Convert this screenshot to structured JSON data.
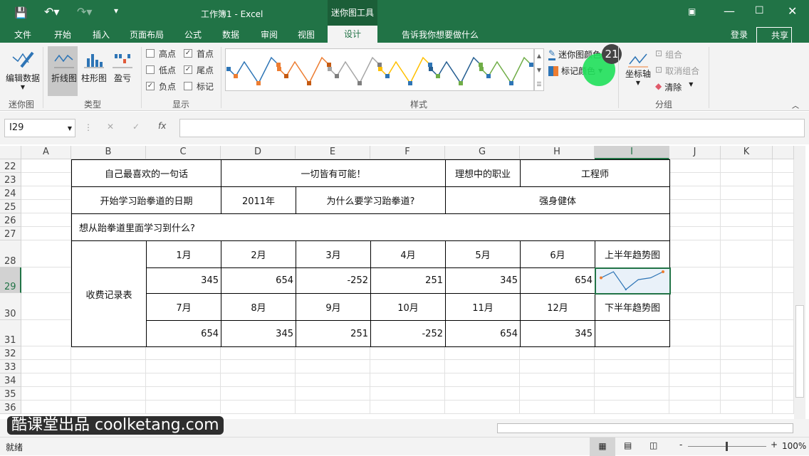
{
  "titlebar": {
    "title": "工作簿1 - Excel",
    "context_tab": "迷你图工具",
    "save_icon": "save-icon",
    "undo_icon": "undo-icon",
    "redo_icon": "redo-icon"
  },
  "tabs": [
    "文件",
    "开始",
    "插入",
    "页面布局",
    "公式",
    "数据",
    "审阅",
    "视图",
    "设计"
  ],
  "active_tab": "设计",
  "tell_me": "告诉我你想要做什么",
  "login": "登录",
  "share": "共享",
  "ribbon": {
    "sparkline_group": {
      "label": "迷你图",
      "edit_data": "编辑数据"
    },
    "type_group": {
      "label": "类型",
      "items": [
        "折线图",
        "柱形图",
        "盈亏"
      ],
      "active": "折线图"
    },
    "show_group": {
      "label": "显示",
      "items": [
        {
          "label": "高点",
          "checked": false
        },
        {
          "label": "首点",
          "checked": true
        },
        {
          "label": "低点",
          "checked": false
        },
        {
          "label": "尾点",
          "checked": true
        },
        {
          "label": "负点",
          "checked": true
        },
        {
          "label": "标记",
          "checked": false
        }
      ]
    },
    "style_group": {
      "label": "样式",
      "colors": [
        [
          "#2e75b6",
          "#ed7d31"
        ],
        [
          "#ed7d31",
          "#c55a11"
        ],
        [
          "#a5a5a5",
          "#7f7f7f"
        ],
        [
          "#ffc000",
          "#2e75b6"
        ],
        [
          "#255e91",
          "#70ad47"
        ],
        [
          "#70ad47",
          "#2e75b6"
        ]
      ]
    },
    "sparkline_color": "迷你图颜色",
    "marker_color": "标记颜色",
    "axis": "坐标轴",
    "group_group": {
      "label": "分组",
      "group": "组合",
      "ungroup": "取消组合",
      "clear": "清除"
    }
  },
  "overlay_badge": "21",
  "formula_bar": {
    "name_box": "I29",
    "value": ""
  },
  "columns": [
    "A",
    "B",
    "C",
    "D",
    "E",
    "F",
    "G",
    "H",
    "I",
    "J",
    "K"
  ],
  "rows": [
    "22",
    "23",
    "24",
    "25",
    "26",
    "27",
    "28",
    "29",
    "30",
    "31",
    "32",
    "33",
    "34",
    "35",
    "36"
  ],
  "active_cell": "I29",
  "cells": [
    {
      "ref": "B22:C23",
      "text": "自己最喜欢的一句话",
      "align": "center"
    },
    {
      "ref": "D22:F23",
      "text": "一切皆有可能！",
      "align": "center"
    },
    {
      "ref": "G22:G23",
      "text": "理想中的职业",
      "align": "center"
    },
    {
      "ref": "H22:I23",
      "text": "工程师",
      "align": "center"
    },
    {
      "ref": "B24:C25",
      "text": "开始学习跆拳道的日期",
      "align": "center"
    },
    {
      "ref": "D24:D25",
      "text": "2011年",
      "align": "center"
    },
    {
      "ref": "E24:F25",
      "text": "为什么要学习跆拳道?",
      "align": "center"
    },
    {
      "ref": "G24:I25",
      "text": "强身健体",
      "align": "center"
    },
    {
      "ref": "B26:I27",
      "text": "想从跆拳道里面学习到什么?",
      "align": "left"
    },
    {
      "ref": "B28:B31",
      "text": "收费记录表",
      "align": "center"
    },
    {
      "ref": "C28",
      "text": "1月",
      "align": "center"
    },
    {
      "ref": "D28",
      "text": "2月",
      "align": "center"
    },
    {
      "ref": "E28",
      "text": "3月",
      "align": "center"
    },
    {
      "ref": "F28",
      "text": "4月",
      "align": "center"
    },
    {
      "ref": "G28",
      "text": "5月",
      "align": "center"
    },
    {
      "ref": "H28",
      "text": "6月",
      "align": "center"
    },
    {
      "ref": "I28",
      "text": "上半年趋势图",
      "align": "center"
    },
    {
      "ref": "C29",
      "text": "345",
      "align": "right"
    },
    {
      "ref": "D29",
      "text": "654",
      "align": "right"
    },
    {
      "ref": "E29",
      "text": "-252",
      "align": "right"
    },
    {
      "ref": "F29",
      "text": "251",
      "align": "right"
    },
    {
      "ref": "G29",
      "text": "345",
      "align": "right"
    },
    {
      "ref": "H29",
      "text": "654",
      "align": "right"
    },
    {
      "ref": "I29",
      "text": "",
      "align": "center"
    },
    {
      "ref": "C30",
      "text": "7月",
      "align": "center"
    },
    {
      "ref": "D30",
      "text": "8月",
      "align": "center"
    },
    {
      "ref": "E30",
      "text": "9月",
      "align": "center"
    },
    {
      "ref": "F30",
      "text": "10月",
      "align": "center"
    },
    {
      "ref": "G30",
      "text": "11月",
      "align": "center"
    },
    {
      "ref": "H30",
      "text": "12月",
      "align": "center"
    },
    {
      "ref": "I30",
      "text": "下半年趋势图",
      "align": "center"
    },
    {
      "ref": "C31",
      "text": "654",
      "align": "right"
    },
    {
      "ref": "D31",
      "text": "345",
      "align": "right"
    },
    {
      "ref": "E31",
      "text": "251",
      "align": "right"
    },
    {
      "ref": "F31",
      "text": "-252",
      "align": "right"
    },
    {
      "ref": "G31",
      "text": "654",
      "align": "right"
    },
    {
      "ref": "H31",
      "text": "345",
      "align": "right"
    },
    {
      "ref": "I31",
      "text": "",
      "align": "center"
    }
  ],
  "sparkline": {
    "cell": "I29",
    "values": [
      345,
      654,
      -252,
      251,
      345,
      654
    ],
    "line_color": "#2e75b6",
    "marker_color": "#ed7d31"
  },
  "watermark": "酷课堂出品 coolketang.com",
  "status": {
    "ready": "就绪",
    "zoom": "100%"
  }
}
